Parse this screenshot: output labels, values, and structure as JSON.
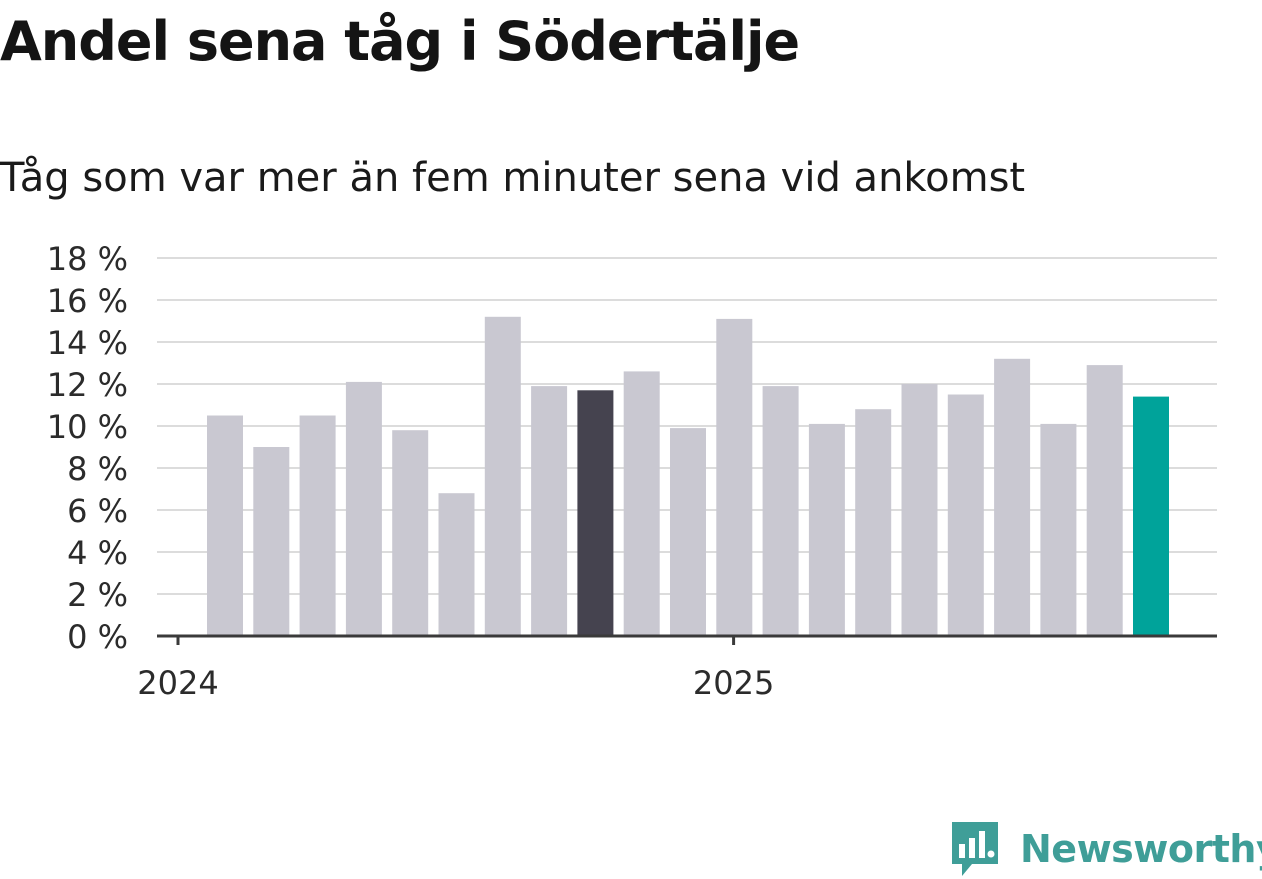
{
  "header": {
    "title": "Andel sena tåg i Södertälje",
    "subtitle": "Tåg som var mer än fem minuter sena vid ankomst"
  },
  "branding": {
    "name": "Newsworthy",
    "icon": "newsworthy-logo-icon",
    "color": "#3f9e98"
  },
  "chart_data": {
    "type": "bar",
    "title": "Andel sena tåg i Södertälje",
    "subtitle": "Tåg som var mer än fem minuter sena vid ankomst",
    "xlabel": "",
    "ylabel": "",
    "ylim": [
      0,
      18
    ],
    "yticks": [
      0,
      2,
      4,
      6,
      8,
      10,
      12,
      14,
      16,
      18
    ],
    "ytick_suffix": " %",
    "grid": true,
    "categories": [
      "2024-01",
      "2024-02",
      "2024-03",
      "2024-04",
      "2024-05",
      "2024-06",
      "2024-07",
      "2024-08",
      "2024-09",
      "2024-10",
      "2024-11",
      "2024-12",
      "2025-01",
      "2025-02",
      "2025-03",
      "2025-04",
      "2025-05",
      "2025-06",
      "2025-07",
      "2025-08",
      "2025-09"
    ],
    "values": [
      10.5,
      9.0,
      10.5,
      12.1,
      9.8,
      6.8,
      15.2,
      11.9,
      11.7,
      12.6,
      9.9,
      15.1,
      11.9,
      10.1,
      10.8,
      12.0,
      11.5,
      13.2,
      10.1,
      12.9,
      11.4
    ],
    "xtick_labels": [
      {
        "label": "2024",
        "category": "2024-01"
      },
      {
        "label": "2025",
        "category": "2025-01"
      }
    ],
    "colors": {
      "default": "#c9c8d1",
      "highlight_previous": "#45434f",
      "highlight_latest": "#00a39a",
      "grid": "#dcdcdc",
      "axis": "#3a3a3a",
      "tick_text": "#2b2b2b"
    },
    "highlights": {
      "2024-09": "highlight_previous",
      "2025-09": "highlight_latest"
    }
  }
}
